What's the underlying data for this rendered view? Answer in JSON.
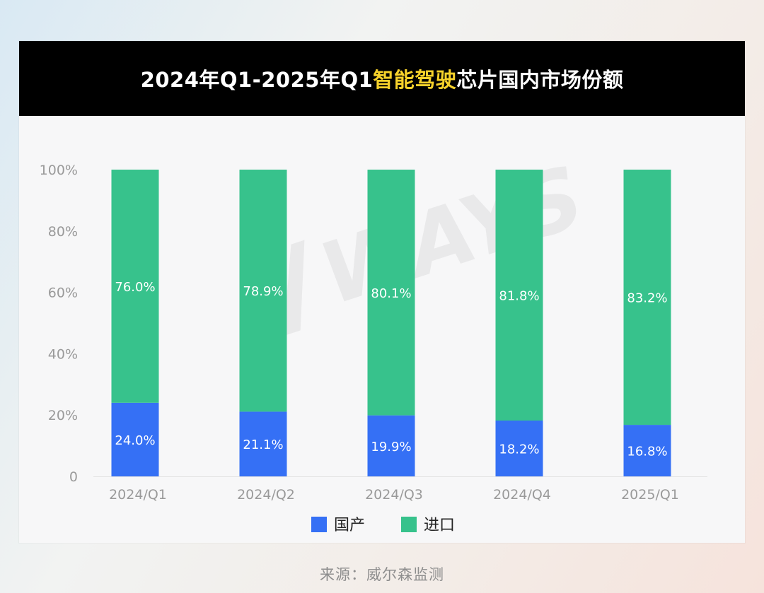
{
  "title": {
    "prefix": "2024年Q1-2025年Q1",
    "highlight": "智能驾驶",
    "suffix": "芯片国内市场份额"
  },
  "source": "来源：威尔森监测",
  "watermark": "WAYS",
  "colors": {
    "domestic": "#3570f5",
    "import": "#37c28c",
    "highlight": "#f7d22b",
    "axis_text": "#9a9a9a"
  },
  "chart_data": {
    "type": "bar",
    "stacked": true,
    "title": "2024年Q1-2025年Q1智能驾驶芯片国内市场份额",
    "categories": [
      "2024/Q1",
      "2024/Q2",
      "2024/Q3",
      "2024/Q4",
      "2025/Q1"
    ],
    "series": [
      {
        "name": "国产",
        "values": [
          24.0,
          21.1,
          19.9,
          18.2,
          16.8
        ],
        "labels": [
          "24.0%",
          "21.1%",
          "19.9%",
          "18.2%",
          "16.8%"
        ]
      },
      {
        "name": "进口",
        "values": [
          76.0,
          78.9,
          80.1,
          81.8,
          83.2
        ],
        "labels": [
          "76.0%",
          "78.9%",
          "80.1%",
          "81.8%",
          "83.2%"
        ]
      }
    ],
    "y_ticks": [
      0,
      20,
      40,
      60,
      80,
      100
    ],
    "y_tick_labels": [
      "0",
      "20%",
      "40%",
      "60%",
      "80%",
      "100%"
    ],
    "ylim": [
      0,
      100
    ],
    "grid": false,
    "legend_position": "bottom-center"
  }
}
